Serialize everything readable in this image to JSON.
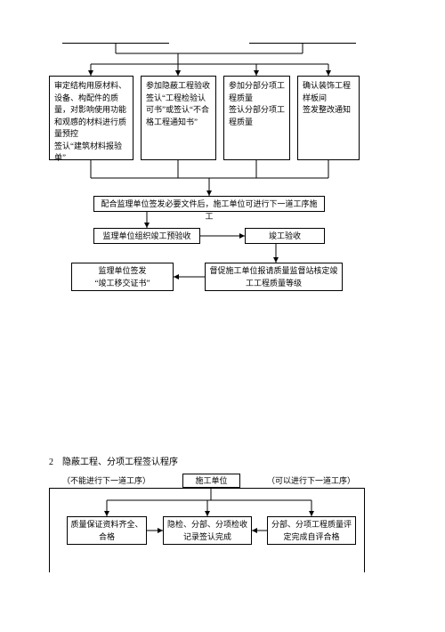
{
  "flowchart1": {
    "top_blank_left": "",
    "top_blank_right": "",
    "box1": "审定结构用原材料、设备、构配件的质量，对影响使用功能和观感的材料进行质量预控\n签认“建筑材料报验单”",
    "box2": "参加隐蔽工程验收\n签认“工程检验认可书”或签认“不合格工程通知书”",
    "box3": "参加分部分项工程质量\n签认分部分项工程质量",
    "box4": "确认装饰工程样板间\n签发整改通知",
    "box5": "配合监理单位签发必要文件后，施工单位可进行下一道工序施工",
    "box6": "监理单位组织竣工预验收",
    "box7": "竣工验收",
    "box8": "监理单位签发\n“竣工移交证书”",
    "box9": "督促施工单位报请质量监督站核定竣工工程质量等级",
    "line_color": "#000000"
  },
  "section2": {
    "title": "2　隐蔽工程、分项工程签认程序",
    "note_left": "（不能进行下一道工序）",
    "note_right": "（可以进行下一道工序）",
    "boxA": "施工单位",
    "boxB": "质量保证资料齐全、合格",
    "boxC": "隐检、分部、分项检收记录签认完成",
    "boxD": "分部、分项工程质量评定完成自评合格"
  }
}
